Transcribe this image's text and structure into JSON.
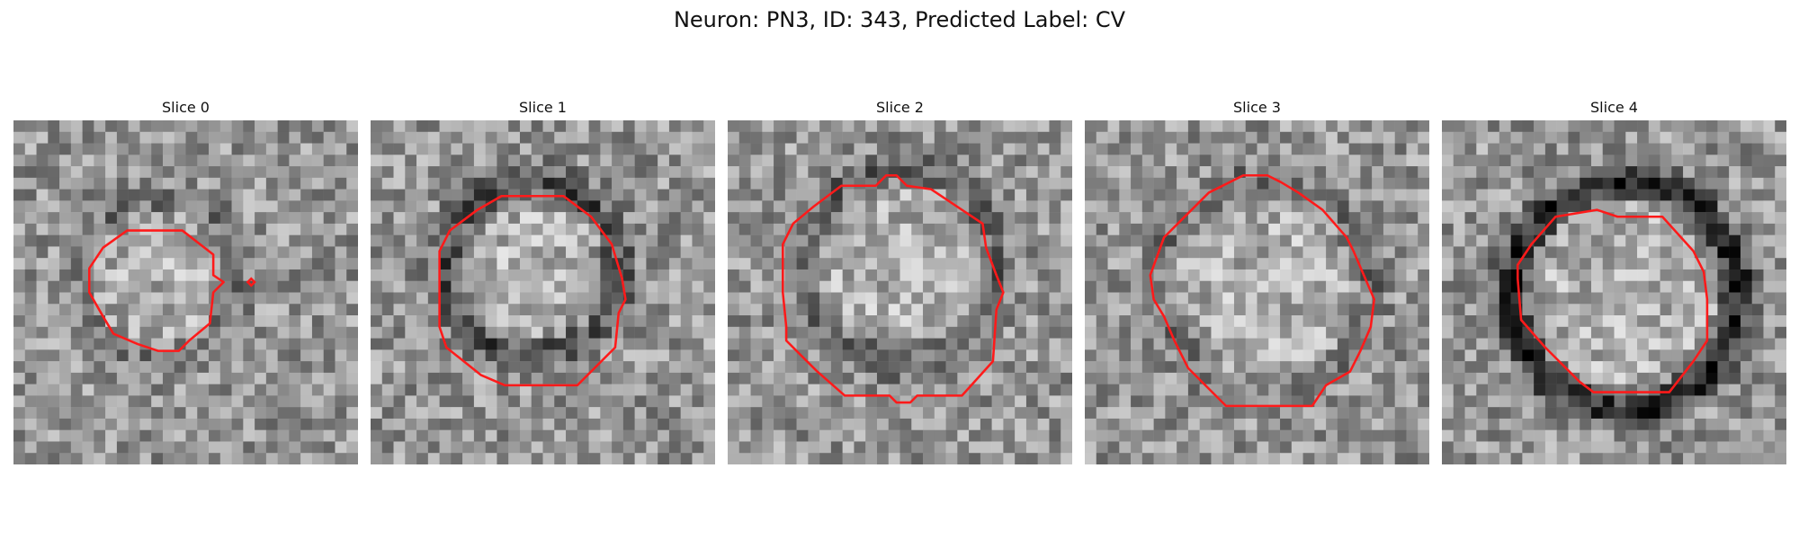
{
  "figure": {
    "title": "Neuron: PN3, ID: 343, Predicted Label: CV"
  },
  "contour_color": "#ff1a1a",
  "panels": [
    {
      "title": "Slice 0",
      "disc": [
        0.42,
        0.46,
        0.23
      ],
      "ring_dark": 0.25,
      "seed": 11,
      "contour": [
        [
          0.33,
          0.32
        ],
        [
          0.49,
          0.32
        ],
        [
          0.58,
          0.39
        ],
        [
          0.58,
          0.45
        ],
        [
          0.61,
          0.47
        ],
        [
          0.58,
          0.5
        ],
        [
          0.57,
          0.59
        ],
        [
          0.51,
          0.64
        ],
        [
          0.48,
          0.67
        ],
        [
          0.42,
          0.67
        ],
        [
          0.36,
          0.65
        ],
        [
          0.29,
          0.62
        ],
        [
          0.26,
          0.57
        ],
        [
          0.22,
          0.5
        ],
        [
          0.22,
          0.43
        ],
        [
          0.26,
          0.37
        ]
      ]
    },
    {
      "title": "Slice 1",
      "disc": [
        0.47,
        0.43,
        0.25
      ],
      "ring_dark": 0.5,
      "seed": 22,
      "contour": [
        [
          0.31,
          0.26
        ],
        [
          0.38,
          0.22
        ],
        [
          0.56,
          0.22
        ],
        [
          0.64,
          0.28
        ],
        [
          0.7,
          0.36
        ],
        [
          0.73,
          0.46
        ],
        [
          0.74,
          0.52
        ],
        [
          0.72,
          0.56
        ],
        [
          0.71,
          0.66
        ],
        [
          0.6,
          0.77
        ],
        [
          0.39,
          0.77
        ],
        [
          0.32,
          0.74
        ],
        [
          0.22,
          0.66
        ],
        [
          0.2,
          0.6
        ],
        [
          0.2,
          0.38
        ],
        [
          0.23,
          0.32
        ]
      ]
    },
    {
      "title": "Slice 2",
      "disc": [
        0.5,
        0.42,
        0.28
      ],
      "ring_dark": 0.35,
      "seed": 33,
      "contour": [
        [
          0.33,
          0.19
        ],
        [
          0.43,
          0.19
        ],
        [
          0.46,
          0.16
        ],
        [
          0.49,
          0.16
        ],
        [
          0.52,
          0.19
        ],
        [
          0.59,
          0.2
        ],
        [
          0.74,
          0.3
        ],
        [
          0.75,
          0.37
        ],
        [
          0.78,
          0.45
        ],
        [
          0.8,
          0.5
        ],
        [
          0.78,
          0.55
        ],
        [
          0.77,
          0.7
        ],
        [
          0.68,
          0.8
        ],
        [
          0.55,
          0.8
        ],
        [
          0.53,
          0.82
        ],
        [
          0.49,
          0.82
        ],
        [
          0.47,
          0.8
        ],
        [
          0.34,
          0.8
        ],
        [
          0.26,
          0.73
        ],
        [
          0.17,
          0.64
        ],
        [
          0.17,
          0.6
        ],
        [
          0.16,
          0.5
        ],
        [
          0.16,
          0.36
        ],
        [
          0.19,
          0.3
        ],
        [
          0.25,
          0.25
        ]
      ]
    },
    {
      "title": "Slice 3",
      "disc": [
        0.52,
        0.48,
        0.31
      ],
      "ring_dark": 0.25,
      "seed": 44,
      "contour": [
        [
          0.36,
          0.21
        ],
        [
          0.46,
          0.16
        ],
        [
          0.53,
          0.16
        ],
        [
          0.57,
          0.18
        ],
        [
          0.62,
          0.21
        ],
        [
          0.69,
          0.26
        ],
        [
          0.76,
          0.34
        ],
        [
          0.78,
          0.38
        ],
        [
          0.81,
          0.45
        ],
        [
          0.84,
          0.52
        ],
        [
          0.83,
          0.6
        ],
        [
          0.8,
          0.67
        ],
        [
          0.77,
          0.73
        ],
        [
          0.7,
          0.77
        ],
        [
          0.66,
          0.83
        ],
        [
          0.41,
          0.83
        ],
        [
          0.3,
          0.72
        ],
        [
          0.26,
          0.64
        ],
        [
          0.23,
          0.57
        ],
        [
          0.2,
          0.52
        ],
        [
          0.19,
          0.45
        ],
        [
          0.23,
          0.34
        ]
      ]
    },
    {
      "title": "Slice 4",
      "disc": [
        0.53,
        0.51,
        0.33
      ],
      "ring_dark": 0.8,
      "seed": 55,
      "contour": [
        [
          0.33,
          0.28
        ],
        [
          0.45,
          0.26
        ],
        [
          0.51,
          0.28
        ],
        [
          0.64,
          0.28
        ],
        [
          0.73,
          0.38
        ],
        [
          0.76,
          0.44
        ],
        [
          0.77,
          0.52
        ],
        [
          0.77,
          0.64
        ],
        [
          0.73,
          0.7
        ],
        [
          0.66,
          0.79
        ],
        [
          0.44,
          0.79
        ],
        [
          0.4,
          0.76
        ],
        [
          0.3,
          0.66
        ],
        [
          0.23,
          0.58
        ],
        [
          0.22,
          0.46
        ],
        [
          0.22,
          0.42
        ],
        [
          0.26,
          0.36
        ]
      ]
    }
  ]
}
